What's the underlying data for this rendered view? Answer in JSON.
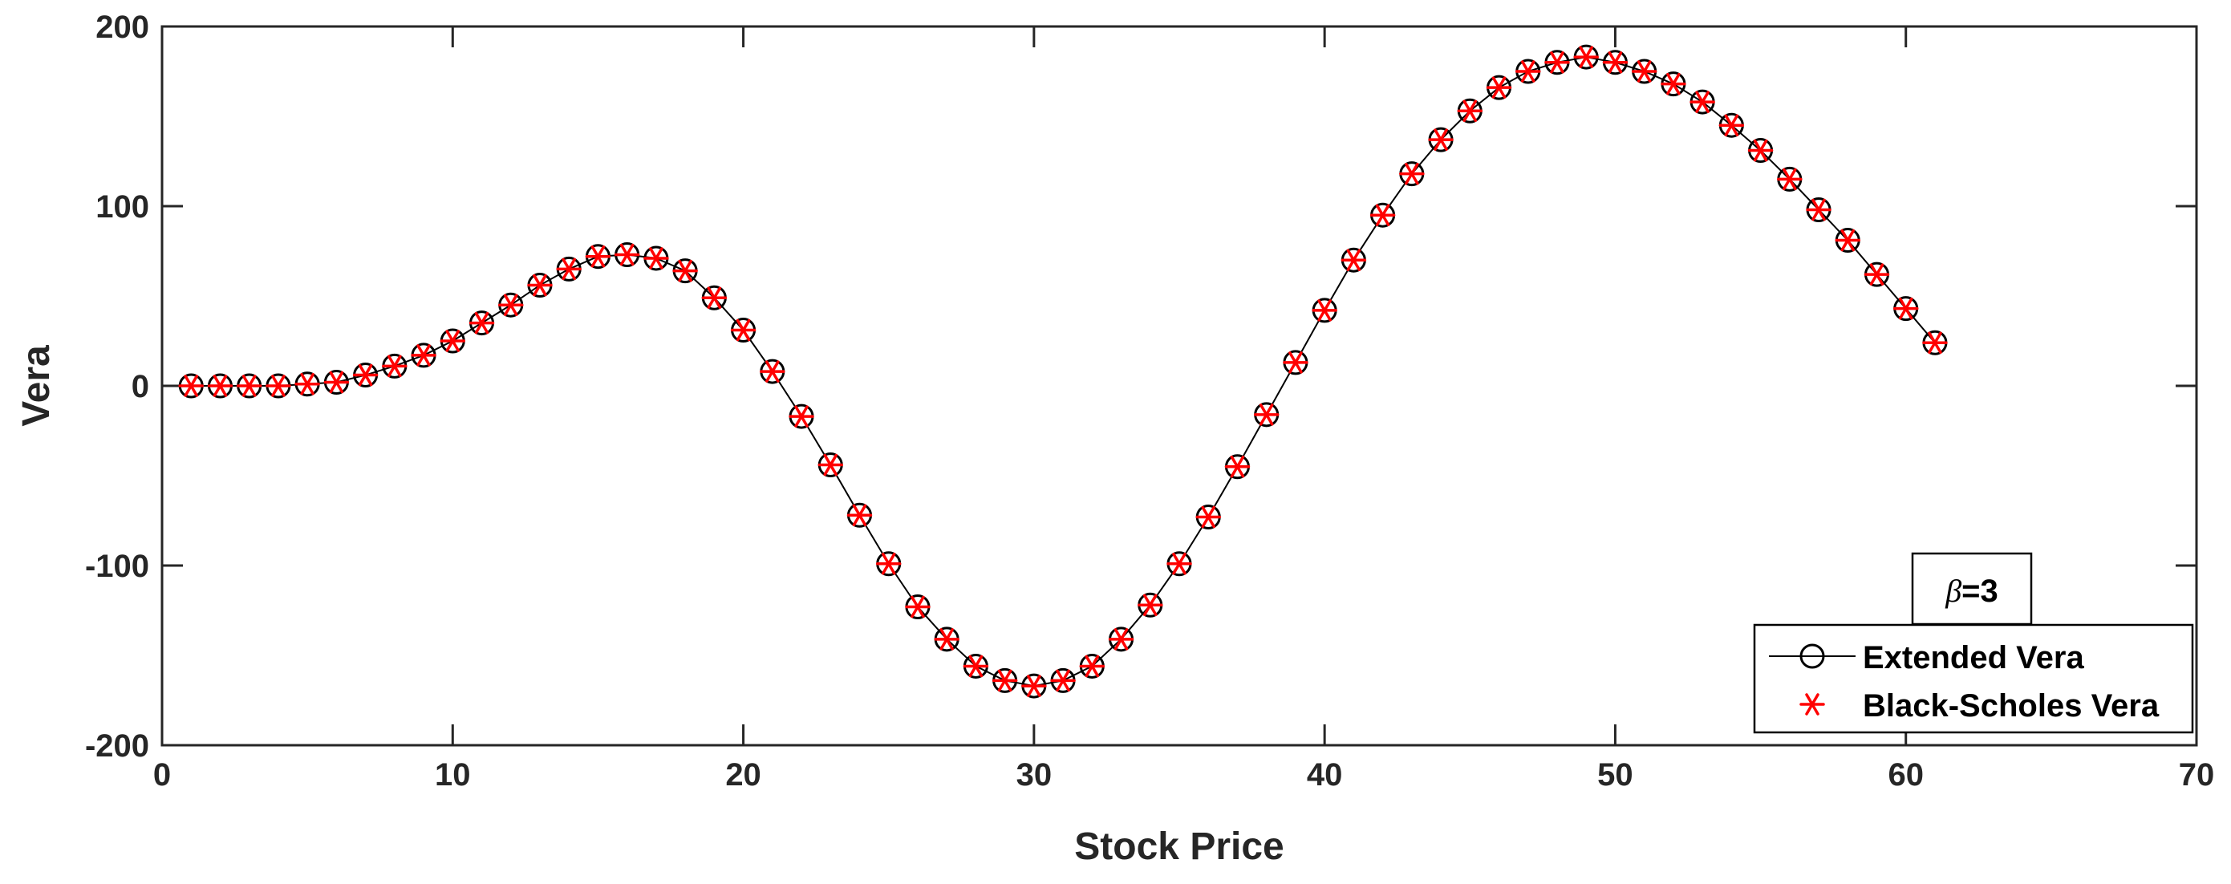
{
  "chart_data": {
    "type": "line",
    "xlabel": "Stock Price",
    "ylabel": "Vera",
    "xlim": [
      0,
      70
    ],
    "ylim": [
      -200,
      200
    ],
    "x_ticks": [
      "0",
      "10",
      "20",
      "30",
      "40",
      "50",
      "60",
      "70"
    ],
    "y_ticks": [
      "-200",
      "-100",
      "0",
      "100",
      "200"
    ],
    "grid": false,
    "legend_position": "bottom-right",
    "annotation": {
      "symbol": "β",
      "text": "=3"
    },
    "colors": {
      "extended": "#000000",
      "black_scholes": "#ff0000"
    },
    "x": [
      1,
      2,
      3,
      4,
      5,
      6,
      7,
      8,
      9,
      10,
      11,
      12,
      13,
      14,
      15,
      16,
      17,
      18,
      19,
      20,
      21,
      22,
      23,
      24,
      25,
      26,
      27,
      28,
      29,
      30,
      31,
      32,
      33,
      34,
      35,
      36,
      37,
      38,
      39,
      40,
      41,
      42,
      43,
      44,
      45,
      46,
      47,
      48,
      49,
      50,
      51,
      52,
      53,
      54,
      55,
      56,
      57,
      58,
      59,
      60,
      61
    ],
    "series": [
      {
        "name": "Extended Vera",
        "marker": "circle",
        "line": true,
        "values": [
          0,
          0,
          0,
          0,
          1,
          2,
          6,
          11,
          17,
          25,
          35,
          45,
          56,
          65,
          72,
          73,
          71,
          64,
          49,
          31,
          8,
          -17,
          -44,
          -72,
          -99,
          -123,
          -141,
          -156,
          -164,
          -167,
          -164,
          -156,
          -141,
          -122,
          -99,
          -73,
          -45,
          -16,
          13,
          42,
          70,
          95,
          118,
          137,
          153,
          166,
          175,
          180,
          183,
          180,
          175,
          168,
          158,
          145,
          131,
          115,
          98,
          81,
          62,
          43,
          24
        ]
      },
      {
        "name": "Black-Scholes Vera",
        "marker": "asterisk",
        "line": false,
        "values": [
          0,
          0,
          0,
          0,
          1,
          2,
          6,
          11,
          17,
          25,
          35,
          45,
          56,
          65,
          72,
          73,
          71,
          64,
          49,
          31,
          8,
          -17,
          -44,
          -72,
          -99,
          -123,
          -141,
          -156,
          -164,
          -167,
          -164,
          -156,
          -141,
          -122,
          -99,
          -73,
          -45,
          -16,
          13,
          42,
          70,
          95,
          118,
          137,
          153,
          166,
          175,
          180,
          183,
          180,
          175,
          168,
          158,
          145,
          131,
          115,
          98,
          81,
          62,
          43,
          24
        ]
      }
    ]
  }
}
